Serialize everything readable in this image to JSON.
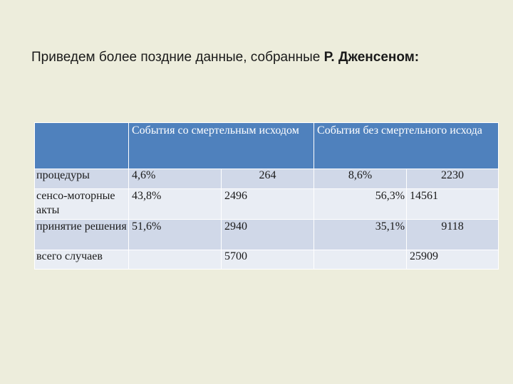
{
  "title": {
    "prefix": "Приведем более поздние данные, собранные ",
    "author": "Р. Дженсеном:"
  },
  "table": {
    "header": {
      "col_fatal": "События со смертельным исходом",
      "col_nonfatal": "События без смертельного исхода"
    },
    "rows": [
      {
        "label": "процедуры",
        "fatal_pct": "4,6%",
        "fatal_n": "264",
        "nonfatal_pct": "8,6%",
        "nonfatal_n": "2230"
      },
      {
        "label": "сенсо-моторные акты",
        "fatal_pct": "43,8%",
        "fatal_n": "2496",
        "nonfatal_pct": "56,3%",
        "nonfatal_n": "14561"
      },
      {
        "label": "принятие решения",
        "fatal_pct": "51,6%",
        "fatal_n": "2940",
        "nonfatal_pct": "35,1%",
        "nonfatal_n": "9118"
      },
      {
        "label": "всего случаев",
        "fatal_pct": "",
        "fatal_n": "5700",
        "nonfatal_pct": "",
        "nonfatal_n": "25909"
      }
    ]
  }
}
